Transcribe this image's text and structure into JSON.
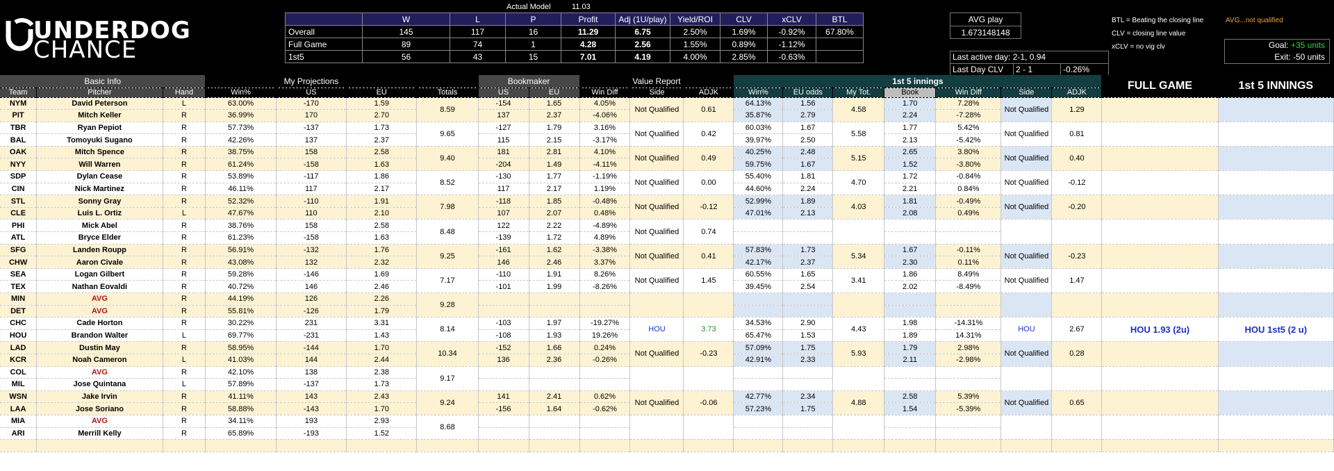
{
  "logo": {
    "line1": "UNDERDOG",
    "line2": "CHANCE"
  },
  "actual_model": {
    "label": "Actual Model",
    "value": "11.03"
  },
  "summary": {
    "headers": [
      "",
      "W",
      "L",
      "P",
      "Profit",
      "Adj (1U/play)",
      "Yield/ROI",
      "CLV",
      "xCLV",
      "BTL"
    ],
    "rows": [
      [
        "Overall",
        "145",
        "117",
        "16",
        "11.29",
        "6.75",
        "2.50%",
        "1.69%",
        "-0.92%",
        "67.80%"
      ],
      [
        "Full Game",
        "89",
        "74",
        "1",
        "4.28",
        "2.56",
        "1.55%",
        "0.89%",
        "-1.12%",
        ""
      ],
      [
        "1st5",
        "56",
        "43",
        "15",
        "7.01",
        "4.19",
        "4.00%",
        "2.85%",
        "-0.63%",
        ""
      ]
    ]
  },
  "avg_play": {
    "label": "AVG play",
    "value": "1.673148148"
  },
  "last_active": {
    "label": "Last active day: 2-1, 0.94",
    "clv_label": "Last Day CLV",
    "clv_day": "2 - 1",
    "clv_value": "-0.26%"
  },
  "legend": {
    "btl": "BTL = Beating the closing line",
    "clv": "CLV = closing line value",
    "xclv": "xCLV = no vig clv",
    "avg_note": "AVG...not qualified"
  },
  "goal": {
    "goal_label": "Goal:",
    "goal_value": "+35 units",
    "exit": "Exit: -50 units"
  },
  "colors": {
    "green": "#2fd82f",
    "orange": "#e8a23a",
    "header_navy": "#221e5c",
    "teal": "#133d40",
    "yellow": "#fdf2d2",
    "blue": "#dbe6f4"
  },
  "groups": {
    "basic": "Basic Info",
    "proj": "My Projections",
    "book": "Bookmaker",
    "value": "Value Report",
    "f5": "1st 5 innings",
    "full": "FULL GAME",
    "f5big": "1st 5 INNINGS"
  },
  "cols": {
    "team": "Team",
    "pitcher": "Pitcher",
    "hand": "Hand",
    "win": "Win%",
    "us": "US",
    "eu": "EU",
    "totals": "Totals",
    "bus": "US",
    "beu": "EU",
    "wd": "Win Diff",
    "side": "Side",
    "adjk": "ADJK",
    "f5win": "Win%",
    "f5eu": "EU odds",
    "f5tot": "My Tot.",
    "f5book": "Book",
    "f5wd": "Win Diff",
    "f5side": "Side",
    "f5adjk": "ADJK"
  },
  "games": [
    {
      "bg": "y",
      "total": "8.59",
      "side": "Not Qualified",
      "adjk": "0.61",
      "f5tot": "4.58",
      "f5side": "Not Qualified",
      "f5adjk": "1.29",
      "full": "",
      "f5rec": "",
      "f5blue": true,
      "teams": [
        {
          "team": "NYM",
          "pitcher": "David Peterson",
          "hand": "L",
          "win": "63.00%",
          "us": "-170",
          "eu": "1.59",
          "bus": "-154",
          "beu": "1.65",
          "wd": "4.05%",
          "f5win": "64.13%",
          "f5eu": "1.56",
          "f5book": "1.70",
          "f5wd": "7.28%"
        },
        {
          "team": "PIT",
          "pitcher": "Mitch Keller",
          "hand": "R",
          "win": "36.99%",
          "us": "170",
          "eu": "2.70",
          "bus": "137",
          "beu": "2.37",
          "wd": "-4.06%",
          "f5win": "35.87%",
          "f5eu": "2.79",
          "f5book": "2.24",
          "f5wd": "-7.28%"
        }
      ]
    },
    {
      "bg": "w",
      "total": "9.65",
      "side": "Not Qualified",
      "adjk": "0.42",
      "f5tot": "5.58",
      "f5side": "Not Qualified",
      "f5adjk": "0.81",
      "full": "",
      "f5rec": "",
      "f5blue": false,
      "teams": [
        {
          "team": "TBR",
          "pitcher": "Ryan Pepiot",
          "hand": "R",
          "win": "57.73%",
          "us": "-137",
          "eu": "1.73",
          "bus": "-127",
          "beu": "1.79",
          "wd": "3.16%",
          "f5win": "60.03%",
          "f5eu": "1.67",
          "f5book": "1.77",
          "f5wd": "5.42%"
        },
        {
          "team": "BAL",
          "pitcher": "Tomoyuki Sugano",
          "hand": "R",
          "win": "42.26%",
          "us": "137",
          "eu": "2.37",
          "bus": "115",
          "beu": "2.15",
          "wd": "-3.17%",
          "f5win": "39.97%",
          "f5eu": "2.50",
          "f5book": "2.13",
          "f5wd": "-5.42%"
        }
      ]
    },
    {
      "bg": "y",
      "total": "9.40",
      "side": "Not Qualified",
      "adjk": "0.49",
      "f5tot": "5.15",
      "f5side": "Not Qualified",
      "f5adjk": "0.40",
      "full": "",
      "f5rec": "",
      "f5blue": true,
      "teams": [
        {
          "team": "OAK",
          "pitcher": "Mitch Spence",
          "hand": "R",
          "win": "38.75%",
          "us": "158",
          "eu": "2.58",
          "bus": "181",
          "beu": "2.81",
          "wd": "4.10%",
          "f5win": "40.25%",
          "f5eu": "2.48",
          "f5book": "2.65",
          "f5wd": "3.80%"
        },
        {
          "team": "NYY",
          "pitcher": "Will Warren",
          "hand": "R",
          "win": "61.24%",
          "us": "-158",
          "eu": "1.63",
          "bus": "-204",
          "beu": "1.49",
          "wd": "-4.11%",
          "f5win": "59.75%",
          "f5eu": "1.67",
          "f5book": "1.52",
          "f5wd": "-3.80%"
        }
      ]
    },
    {
      "bg": "w",
      "total": "8.52",
      "side": "Not Qualified",
      "adjk": "0.00",
      "f5tot": "4.70",
      "f5side": "Not Qualified",
      "f5adjk": "-0.12",
      "full": "",
      "f5rec": "",
      "f5blue": false,
      "teams": [
        {
          "team": "SDP",
          "pitcher": "Dylan Cease",
          "hand": "R",
          "win": "53.89%",
          "us": "-117",
          "eu": "1.86",
          "bus": "-130",
          "beu": "1.77",
          "wd": "-1.19%",
          "f5win": "55.40%",
          "f5eu": "1.81",
          "f5book": "1.72",
          "f5wd": "-0.84%"
        },
        {
          "team": "CIN",
          "pitcher": "Nick Martinez",
          "hand": "R",
          "win": "46.11%",
          "us": "117",
          "eu": "2.17",
          "bus": "117",
          "beu": "2.17",
          "wd": "1.19%",
          "f5win": "44.60%",
          "f5eu": "2.24",
          "f5book": "2.21",
          "f5wd": "0.84%"
        }
      ]
    },
    {
      "bg": "y",
      "total": "7.98",
      "side": "Not Qualified",
      "adjk": "-0.12",
      "f5tot": "4.03",
      "f5side": "Not Qualified",
      "f5adjk": "-0.20",
      "full": "",
      "f5rec": "",
      "f5blue": true,
      "teams": [
        {
          "team": "STL",
          "pitcher": "Sonny Gray",
          "hand": "R",
          "win": "52.32%",
          "us": "-110",
          "eu": "1.91",
          "bus": "-118",
          "beu": "1.85",
          "wd": "-0.48%",
          "f5win": "52.99%",
          "f5eu": "1.89",
          "f5book": "1.81",
          "f5wd": "-0.49%"
        },
        {
          "team": "CLE",
          "pitcher": "Luis L. Ortiz",
          "hand": "L",
          "win": "47.67%",
          "us": "110",
          "eu": "2.10",
          "bus": "107",
          "beu": "2.07",
          "wd": "0.48%",
          "f5win": "47.01%",
          "f5eu": "2.13",
          "f5book": "2.08",
          "f5wd": "0.49%"
        }
      ]
    },
    {
      "bg": "w",
      "total": "8.48",
      "side": "Not Qualified",
      "adjk": "0.74",
      "f5tot": "",
      "f5side": "",
      "f5adjk": "",
      "full": "",
      "f5rec": "",
      "f5blue": false,
      "teams": [
        {
          "team": "PHI",
          "pitcher": "Mick Abel",
          "hand": "R",
          "win": "38.76%",
          "us": "158",
          "eu": "2.58",
          "bus": "122",
          "beu": "2.22",
          "wd": "-4.89%",
          "f5win": "",
          "f5eu": "",
          "f5book": "",
          "f5wd": ""
        },
        {
          "team": "ATL",
          "pitcher": "Bryce Elder",
          "hand": "R",
          "win": "61.23%",
          "us": "-158",
          "eu": "1.63",
          "bus": "-139",
          "beu": "1.72",
          "wd": "4.89%",
          "f5win": "",
          "f5eu": "",
          "f5book": "",
          "f5wd": ""
        }
      ]
    },
    {
      "bg": "y",
      "total": "9.25",
      "side": "Not Qualified",
      "adjk": "0.41",
      "f5tot": "5.34",
      "f5side": "Not Qualified",
      "f5adjk": "-0.23",
      "full": "",
      "f5rec": "",
      "f5blue": true,
      "teams": [
        {
          "team": "SFG",
          "pitcher": "Landen Roupp",
          "hand": "R",
          "win": "56.91%",
          "us": "-132",
          "eu": "1.76",
          "bus": "-161",
          "beu": "1.62",
          "wd": "-3.38%",
          "f5win": "57.83%",
          "f5eu": "1.73",
          "f5book": "1.67",
          "f5wd": "-0.11%"
        },
        {
          "team": "CHW",
          "pitcher": "Aaron Civale",
          "hand": "R",
          "win": "43.08%",
          "us": "132",
          "eu": "2.32",
          "bus": "146",
          "beu": "2.46",
          "wd": "3.37%",
          "f5win": "42.17%",
          "f5eu": "2.37",
          "f5book": "2.30",
          "f5wd": "0.11%"
        }
      ]
    },
    {
      "bg": "w",
      "total": "7.17",
      "side": "Not Qualified",
      "adjk": "1.45",
      "f5tot": "3.41",
      "f5side": "Not Qualified",
      "f5adjk": "1.47",
      "full": "",
      "f5rec": "",
      "f5blue": false,
      "teams": [
        {
          "team": "SEA",
          "pitcher": "Logan Gilbert",
          "hand": "R",
          "win": "59.28%",
          "us": "-146",
          "eu": "1.69",
          "bus": "-110",
          "beu": "1.91",
          "wd": "8.26%",
          "f5win": "60.55%",
          "f5eu": "1.65",
          "f5book": "1.86",
          "f5wd": "8.49%"
        },
        {
          "team": "TEX",
          "pitcher": "Nathan Eovaldi",
          "hand": "R",
          "win": "40.72%",
          "us": "146",
          "eu": "2.46",
          "bus": "-101",
          "beu": "1.99",
          "wd": "-8.26%",
          "f5win": "39.45%",
          "f5eu": "2.54",
          "f5book": "2.02",
          "f5wd": "-8.49%"
        }
      ]
    },
    {
      "bg": "y",
      "total": "9.28",
      "side": "",
      "adjk": "",
      "f5tot": "",
      "f5side": "",
      "f5adjk": "",
      "full": "",
      "f5rec": "",
      "f5blue": true,
      "teams": [
        {
          "team": "MIN",
          "pitcher": "AVG",
          "avg": true,
          "hand": "R",
          "win": "44.19%",
          "us": "126",
          "eu": "2.26",
          "bus": "",
          "beu": "",
          "wd": "",
          "f5win": "",
          "f5eu": "",
          "f5book": "",
          "f5wd": ""
        },
        {
          "team": "DET",
          "pitcher": "AVG",
          "avg": true,
          "hand": "R",
          "win": "55.81%",
          "us": "-126",
          "eu": "1.79",
          "bus": "",
          "beu": "",
          "wd": "",
          "f5win": "",
          "f5eu": "",
          "f5book": "",
          "f5wd": ""
        }
      ]
    },
    {
      "bg": "w",
      "total": "8.14",
      "side": "HOU",
      "adjk": "3.73",
      "f5tot": "4.43",
      "f5side": "HOU",
      "f5adjk": "2.67",
      "full": "HOU 1.93 (2u)",
      "f5rec": "HOU 1st5 (2 u)",
      "f5blue": false,
      "pick": true,
      "teams": [
        {
          "team": "CHC",
          "pitcher": "Cade Horton",
          "hand": "R",
          "win": "30.22%",
          "us": "231",
          "eu": "3.31",
          "bus": "-103",
          "beu": "1.97",
          "wd": "-19.27%",
          "f5win": "34.53%",
          "f5eu": "2.90",
          "f5book": "1.98",
          "f5wd": "-14.31%"
        },
        {
          "team": "HOU",
          "pitcher": "Brandon Walter",
          "hand": "L",
          "win": "69.77%",
          "us": "-231",
          "eu": "1.43",
          "bus": "-108",
          "beu": "1.93",
          "wd": "19.26%",
          "f5win": "65.47%",
          "f5eu": "1.53",
          "f5book": "1.89",
          "f5wd": "14.31%"
        }
      ]
    },
    {
      "bg": "y",
      "total": "10.34",
      "side": "Not Qualified",
      "adjk": "-0.23",
      "f5tot": "5.93",
      "f5side": "Not Qualified",
      "f5adjk": "0.28",
      "full": "",
      "f5rec": "",
      "f5blue": true,
      "teams": [
        {
          "team": "LAD",
          "pitcher": "Dustin May",
          "hand": "R",
          "win": "58.95%",
          "us": "-144",
          "eu": "1.70",
          "bus": "-152",
          "beu": "1.66",
          "wd": "0.24%",
          "f5win": "57.09%",
          "f5eu": "1.75",
          "f5book": "1.79",
          "f5wd": "2.98%"
        },
        {
          "team": "KCR",
          "pitcher": "Noah Cameron",
          "hand": "L",
          "win": "41.03%",
          "us": "144",
          "eu": "2.44",
          "bus": "136",
          "beu": "2.36",
          "wd": "-0.26%",
          "f5win": "42.91%",
          "f5eu": "2.33",
          "f5book": "2.11",
          "f5wd": "-2.98%"
        }
      ]
    },
    {
      "bg": "w",
      "total": "9.17",
      "side": "",
      "adjk": "",
      "f5tot": "",
      "f5side": "",
      "f5adjk": "",
      "full": "",
      "f5rec": "",
      "f5blue": false,
      "teams": [
        {
          "team": "COL",
          "pitcher": "AVG",
          "avg": true,
          "hand": "R",
          "win": "42.10%",
          "us": "138",
          "eu": "2.38",
          "bus": "",
          "beu": "",
          "wd": "",
          "f5win": "",
          "f5eu": "",
          "f5book": "",
          "f5wd": ""
        },
        {
          "team": "MIL",
          "pitcher": "Jose Quintana",
          "hand": "L",
          "win": "57.89%",
          "us": "-137",
          "eu": "1.73",
          "bus": "",
          "beu": "",
          "wd": "",
          "f5win": "",
          "f5eu": "",
          "f5book": "",
          "f5wd": ""
        }
      ]
    },
    {
      "bg": "y",
      "total": "9.24",
      "side": "Not Qualified",
      "adjk": "-0.06",
      "f5tot": "4.88",
      "f5side": "Not Qualified",
      "f5adjk": "0.65",
      "full": "",
      "f5rec": "",
      "f5blue": true,
      "teams": [
        {
          "team": "WSN",
          "pitcher": "Jake Irvin",
          "hand": "R",
          "win": "41.11%",
          "us": "143",
          "eu": "2.43",
          "bus": "141",
          "beu": "2.41",
          "wd": "0.62%",
          "f5win": "42.77%",
          "f5eu": "2.34",
          "f5book": "2.58",
          "f5wd": "5.39%"
        },
        {
          "team": "LAA",
          "pitcher": "Jose Soriano",
          "hand": "R",
          "win": "58.88%",
          "us": "-143",
          "eu": "1.70",
          "bus": "-156",
          "beu": "1.64",
          "wd": "-0.62%",
          "f5win": "57.23%",
          "f5eu": "1.75",
          "f5book": "1.54",
          "f5wd": "-5.39%"
        }
      ]
    },
    {
      "bg": "w",
      "total": "8.68",
      "side": "",
      "adjk": "",
      "f5tot": "",
      "f5side": "",
      "f5adjk": "",
      "full": "",
      "f5rec": "",
      "f5blue": false,
      "teams": [
        {
          "team": "MIA",
          "pitcher": "AVG",
          "avg": true,
          "hand": "R",
          "win": "34.11%",
          "us": "193",
          "eu": "2.93",
          "bus": "",
          "beu": "",
          "wd": "",
          "f5win": "",
          "f5eu": "",
          "f5book": "",
          "f5wd": ""
        },
        {
          "team": "ARI",
          "pitcher": "Merrill Kelly",
          "hand": "R",
          "win": "65.89%",
          "us": "-193",
          "eu": "1.52",
          "bus": "",
          "beu": "",
          "wd": "",
          "f5win": "",
          "f5eu": "",
          "f5book": "",
          "f5wd": ""
        }
      ]
    }
  ]
}
